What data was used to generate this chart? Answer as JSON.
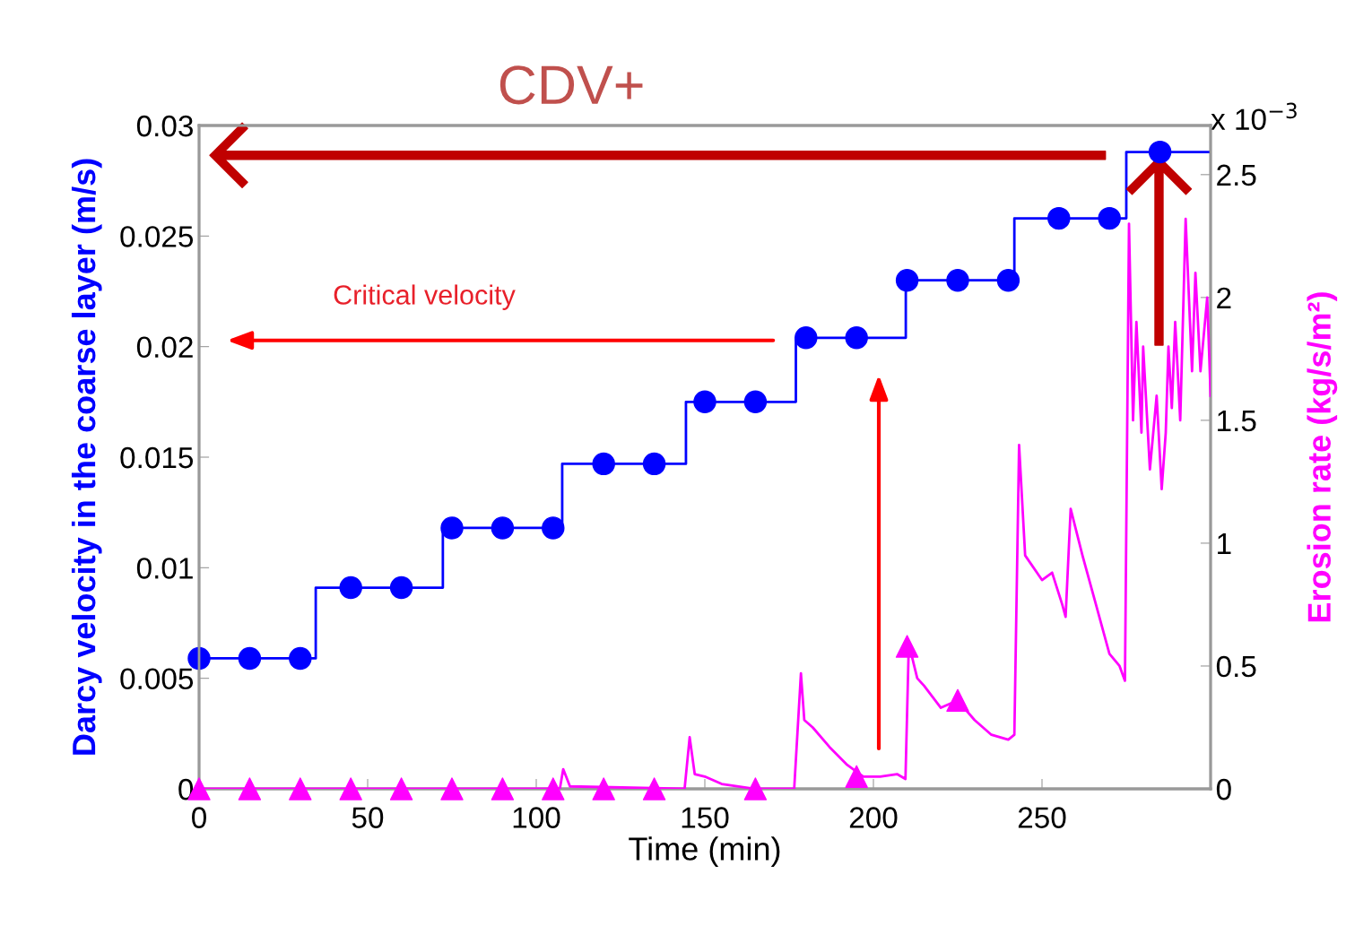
{
  "chart_data": {
    "type": "line",
    "xlabel": "Time (min)",
    "ylabel": "Darcy velocity in the coarse layer (m/s)",
    "y2label": "Erosion rate (kg/s/m²)",
    "xlim": [
      0,
      300
    ],
    "xticks": [
      0,
      50,
      100,
      150,
      200,
      250
    ],
    "ylim": [
      0,
      0.03
    ],
    "yticks": [
      0,
      0.005,
      0.01,
      0.015,
      0.02,
      0.025,
      0.03
    ],
    "y2lim": [
      0,
      2.7
    ],
    "y2ticks": [
      0,
      0.5,
      1,
      1.5,
      2,
      2.5
    ],
    "grid": false,
    "legend": false,
    "annotations": [
      "CDV+",
      "Critical velocity",
      "x 10$^{−3}$"
    ],
    "series": [
      {
        "color": "#0000ff",
        "marker": "none",
        "x": [
          0,
          34.6,
          34.6,
          72.3,
          72.3,
          107.7,
          107.7,
          144.4,
          144.4,
          177,
          177,
          209.6,
          209.6,
          241.8,
          241.8,
          275,
          275,
          300
        ],
        "values": [
          0.0059,
          0.0059,
          0.0091,
          0.0091,
          0.0118,
          0.0118,
          0.0147,
          0.0147,
          0.0175,
          0.0175,
          0.0204,
          0.0204,
          0.023,
          0.023,
          0.0258,
          0.0258,
          0.0288,
          0.0288
        ]
      },
      {
        "type": "scatter",
        "color": "#0000ff",
        "marker": "circle",
        "x": [
          0,
          15,
          30,
          45,
          60,
          75,
          90,
          105,
          120,
          135,
          150,
          165,
          180,
          195,
          210,
          225,
          240,
          255,
          270,
          285
        ],
        "values": [
          0.0059,
          0.0059,
          0.0059,
          0.0091,
          0.0091,
          0.0118,
          0.0118,
          0.0118,
          0.0147,
          0.0147,
          0.0175,
          0.0175,
          0.0204,
          0.0204,
          0.023,
          0.023,
          0.023,
          0.0258,
          0.0258,
          0.0288
        ]
      },
      {
        "axis": "y2",
        "color": "#ff00ff",
        "marker": "none",
        "x": [
          0,
          107,
          108,
          110,
          144,
          145.5,
          147,
          150,
          155,
          160,
          165,
          176.5,
          178.5,
          179.5,
          182,
          187,
          192,
          197,
          202,
          207,
          209.5,
          210.5,
          213,
          215,
          220,
          225,
          230,
          235,
          240,
          241.8,
          243.2,
          245,
          250,
          253,
          256,
          257,
          258.5,
          262,
          266,
          270,
          273,
          274.6,
          275.8,
          277,
          278,
          279.5,
          280,
          282,
          284,
          285.5,
          286.7,
          287.5,
          288.5,
          289.5,
          291,
          292.6,
          294.5,
          295.5,
          297,
          299,
          300
        ],
        "values": [
          0,
          0,
          0.08,
          0.01,
          0,
          0.21,
          0.06,
          0.05,
          0.02,
          0.01,
          0,
          0,
          0.47,
          0.28,
          0.25,
          0.17,
          0.1,
          0.05,
          0.05,
          0.06,
          0.04,
          0.59,
          0.45,
          0.42,
          0.33,
          0.36,
          0.28,
          0.22,
          0.2,
          0.22,
          1.4,
          0.95,
          0.85,
          0.88,
          0.75,
          0.7,
          1.14,
          0.95,
          0.75,
          0.55,
          0.5,
          0.44,
          2.3,
          1.5,
          1.9,
          1.45,
          1.8,
          1.3,
          1.6,
          1.22,
          1.45,
          1.8,
          1.55,
          1.9,
          1.5,
          2.32,
          1.7,
          2.1,
          1.7,
          2.0,
          1.6
        ]
      },
      {
        "type": "scatter",
        "axis": "y2",
        "color": "#ff00ff",
        "marker": "triangle",
        "x": [
          0,
          15,
          30,
          45,
          60,
          75,
          90,
          105,
          120,
          135,
          165,
          195,
          210,
          225
        ],
        "values": [
          0,
          0,
          0,
          0,
          0,
          0,
          0,
          0,
          0,
          0,
          0,
          0.05,
          0.58,
          0.36
        ]
      }
    ]
  }
}
